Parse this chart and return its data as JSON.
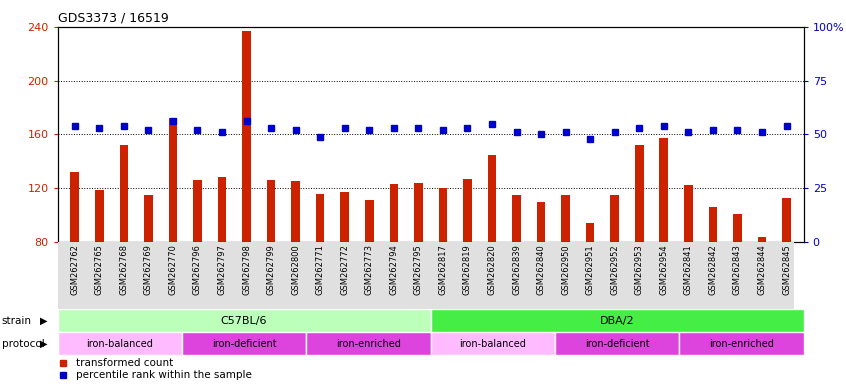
{
  "title": "GDS3373 / 16519",
  "samples": [
    "GSM262762",
    "GSM262765",
    "GSM262768",
    "GSM262769",
    "GSM262770",
    "GSM262796",
    "GSM262797",
    "GSM262798",
    "GSM262799",
    "GSM262800",
    "GSM262771",
    "GSM262772",
    "GSM262773",
    "GSM262794",
    "GSM262795",
    "GSM262817",
    "GSM262819",
    "GSM262820",
    "GSM262839",
    "GSM262840",
    "GSM262950",
    "GSM262951",
    "GSM262952",
    "GSM262953",
    "GSM262954",
    "GSM262841",
    "GSM262842",
    "GSM262843",
    "GSM262844",
    "GSM262845"
  ],
  "transformed_counts": [
    132,
    119,
    152,
    115,
    172,
    126,
    128,
    237,
    126,
    125,
    116,
    117,
    111,
    123,
    124,
    120,
    127,
    145,
    115,
    110,
    115,
    94,
    115,
    152,
    157,
    122,
    106,
    101,
    84,
    113
  ],
  "percentile_ranks": [
    54,
    53,
    54,
    52,
    56,
    52,
    51,
    56,
    53,
    52,
    49,
    53,
    52,
    53,
    53,
    52,
    53,
    55,
    51,
    50,
    51,
    48,
    51,
    53,
    54,
    51,
    52,
    52,
    51,
    54
  ],
  "bar_color": "#cc2200",
  "dot_color": "#0000cc",
  "ylim_left": [
    80,
    240
  ],
  "ylim_right": [
    0,
    100
  ],
  "yticks_left": [
    80,
    120,
    160,
    200,
    240
  ],
  "yticks_right": [
    0,
    25,
    50,
    75,
    100
  ],
  "yticklabels_right": [
    "0",
    "25",
    "50",
    "75",
    "100%"
  ],
  "strain_groups": [
    {
      "label": "C57BL/6",
      "start": 0,
      "end": 15,
      "color": "#bbffbb"
    },
    {
      "label": "DBA/2",
      "start": 15,
      "end": 30,
      "color": "#44ee44"
    }
  ],
  "protocol_groups": [
    {
      "label": "iron-balanced",
      "start": 0,
      "end": 5,
      "color": "#ffbbff"
    },
    {
      "label": "iron-deficient",
      "start": 5,
      "end": 10,
      "color": "#ee44ee"
    },
    {
      "label": "iron-enriched",
      "start": 10,
      "end": 15,
      "color": "#ee44ee"
    },
    {
      "label": "iron-balanced",
      "start": 15,
      "end": 20,
      "color": "#ffbbff"
    },
    {
      "label": "iron-deficient",
      "start": 20,
      "end": 25,
      "color": "#ee44ee"
    },
    {
      "label": "iron-enriched",
      "start": 25,
      "end": 30,
      "color": "#ee44ee"
    }
  ],
  "background_color": "#ffffff",
  "plot_bg_color": "#ffffff",
  "grid_color": "#000000",
  "title_fontsize": 9,
  "tick_fontsize": 8,
  "bar_width": 0.35,
  "dot_size": 4
}
